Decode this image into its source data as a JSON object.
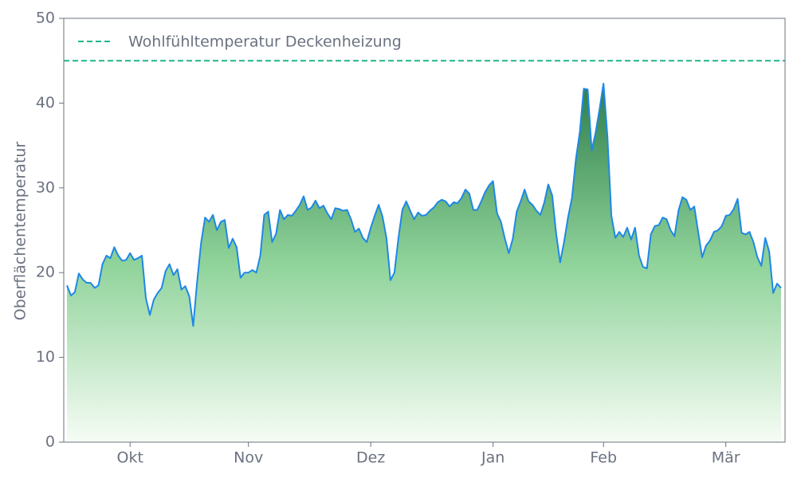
{
  "chart_data": {
    "type": "area",
    "ylabel": "Oberflächentemperatur",
    "categories": [
      null,
      null,
      null,
      null,
      null,
      null,
      null,
      null,
      null,
      null,
      null,
      null,
      null,
      null,
      null,
      null,
      "Okt",
      null,
      null,
      null,
      null,
      null,
      null,
      null,
      null,
      null,
      null,
      null,
      null,
      null,
      null,
      null,
      null,
      null,
      null,
      null,
      null,
      null,
      null,
      null,
      null,
      null,
      null,
      null,
      null,
      null,
      "Nov",
      null,
      null,
      null,
      null,
      null,
      null,
      null,
      null,
      null,
      null,
      null,
      null,
      null,
      null,
      null,
      null,
      null,
      null,
      null,
      null,
      null,
      null,
      null,
      null,
      null,
      null,
      null,
      null,
      null,
      null,
      "Dez",
      null,
      null,
      null,
      null,
      null,
      null,
      null,
      null,
      null,
      null,
      null,
      null,
      null,
      null,
      null,
      null,
      null,
      null,
      null,
      null,
      null,
      null,
      null,
      null,
      null,
      null,
      null,
      null,
      null,
      null,
      "Jan",
      null,
      null,
      null,
      null,
      null,
      null,
      null,
      null,
      null,
      null,
      null,
      null,
      null,
      null,
      null,
      null,
      null,
      null,
      null,
      null,
      null,
      null,
      null,
      null,
      null,
      null,
      null,
      "Feb",
      null,
      null,
      null,
      null,
      null,
      null,
      null,
      null,
      null,
      null,
      null,
      null,
      null,
      null,
      null,
      null,
      null,
      null,
      null,
      null,
      null,
      null,
      null,
      null,
      null,
      null,
      null,
      null,
      null,
      null,
      "Mär",
      null,
      null,
      null,
      null,
      null,
      null,
      null,
      null,
      null,
      null,
      null,
      null,
      null,
      null
    ],
    "values": [
      18.5,
      17.3,
      17.7,
      19.9,
      19.2,
      18.8,
      18.8,
      18.2,
      18.5,
      21.0,
      22.0,
      21.7,
      23.0,
      22.0,
      21.4,
      21.5,
      22.3,
      21.5,
      21.7,
      22.0,
      17.0,
      15.0,
      16.8,
      17.6,
      18.2,
      20.2,
      21.0,
      19.7,
      20.4,
      18.0,
      18.4,
      17.2,
      13.7,
      19.0,
      23.5,
      26.5,
      26.0,
      26.8,
      25.0,
      26.0,
      26.2,
      22.9,
      24.0,
      23.0,
      19.4,
      20.0,
      20.0,
      20.3,
      20.0,
      22.0,
      26.8,
      27.2,
      23.6,
      24.6,
      27.4,
      26.3,
      26.8,
      26.7,
      27.3,
      28.0,
      29.0,
      27.4,
      27.7,
      28.5,
      27.6,
      27.9,
      27.0,
      26.3,
      27.6,
      27.5,
      27.3,
      27.4,
      26.3,
      24.8,
      25.2,
      24.1,
      23.6,
      25.3,
      26.7,
      28.0,
      26.6,
      24.0,
      19.1,
      20.0,
      24.0,
      27.4,
      28.4,
      27.3,
      26.3,
      27.1,
      26.7,
      26.8,
      27.3,
      27.7,
      28.3,
      28.6,
      28.4,
      27.8,
      28.3,
      28.2,
      28.8,
      29.8,
      29.3,
      27.4,
      27.4,
      28.4,
      29.5,
      30.3,
      30.8,
      27.0,
      26.0,
      24.0,
      22.3,
      24.0,
      27.2,
      28.4,
      29.8,
      28.4,
      28.0,
      27.3,
      26.8,
      28.3,
      30.4,
      29.1,
      24.6,
      21.2,
      23.6,
      26.5,
      28.8,
      33.4,
      36.6,
      41.7,
      41.6,
      34.4,
      36.5,
      39.3,
      42.3,
      36.0,
      26.7,
      24.1,
      24.8,
      24.2,
      25.3,
      23.9,
      25.3,
      22.0,
      20.7,
      20.5,
      24.5,
      25.5,
      25.6,
      26.5,
      26.3,
      25.0,
      24.3,
      27.3,
      28.9,
      28.6,
      27.4,
      27.8,
      24.8,
      21.8,
      23.2,
      23.8,
      24.8,
      25.0,
      25.5,
      26.7,
      26.8,
      27.5,
      28.7,
      24.7,
      24.5,
      24.8,
      23.6,
      21.8,
      20.8,
      24.1,
      22.5,
      17.6,
      18.7,
      18.2
    ],
    "color": "#1e88e5",
    "reference_lines": [
      {
        "name": "Wohlfühltemperatur Deckenheizung",
        "value": 45,
        "color": "#1fb58a"
      }
    ],
    "legend": "upper left",
    "ylim": [
      0,
      50
    ],
    "yticks": [
      0,
      10,
      20,
      30,
      40,
      50
    ]
  }
}
